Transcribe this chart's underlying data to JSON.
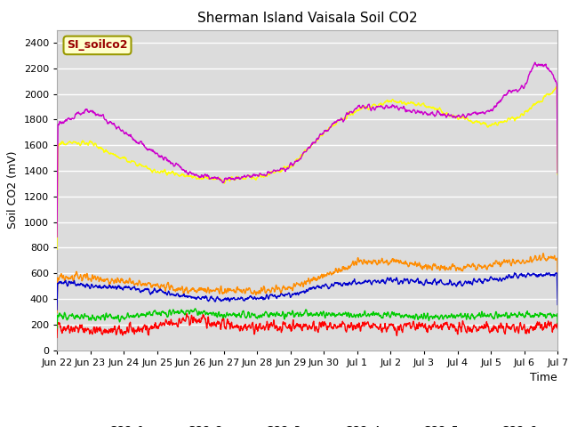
{
  "title": "Sherman Island Vaisala Soil CO2",
  "ylabel": "Soil CO2 (mV)",
  "xlabel": "Time",
  "watermark": "SI_soilco2",
  "ylim": [
    0,
    2500
  ],
  "yticks": [
    0,
    200,
    400,
    600,
    800,
    1000,
    1200,
    1400,
    1600,
    1800,
    2000,
    2200,
    2400
  ],
  "colors": {
    "CO2_1": "#ff0000",
    "CO2_2": "#ff8c00",
    "CO2_3": "#ffff00",
    "CO2_4": "#00cc00",
    "CO2_5": "#0000cc",
    "CO2_6": "#cc00cc"
  },
  "bg_color": "#dcdcdc",
  "xtick_labels": [
    "Jun 22",
    "Jun 23",
    "Jun 24",
    "Jun 25",
    "Jun 26",
    "Jun 27",
    "Jun 28",
    "Jun 29",
    "Jun 30",
    "Jul 1",
    "Jul 2",
    "Jul 3",
    "Jul 4",
    "Jul 5",
    "Jul 6",
    "Jul 7"
  ],
  "n_days": 15,
  "pts_per_day": 96
}
